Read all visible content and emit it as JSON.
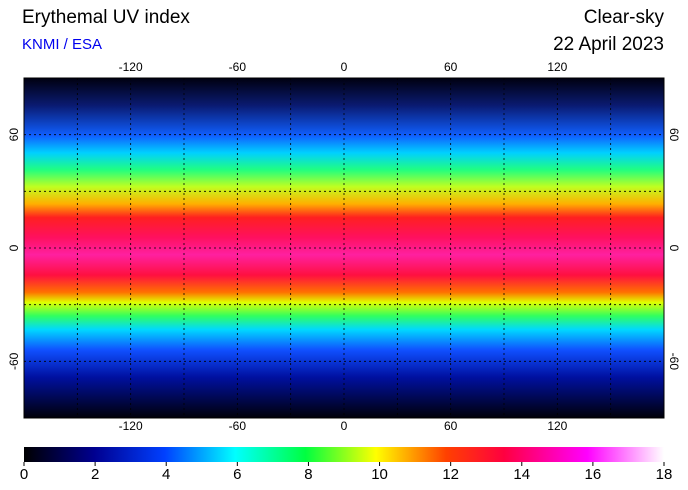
{
  "header": {
    "title": "Erythemal UV index",
    "source": "KNMI / ESA",
    "condition": "Clear-sky",
    "date": "22 April 2023"
  },
  "map": {
    "lonlim": [
      -180,
      180
    ],
    "latlim": [
      -90,
      90
    ],
    "lon_ticks": [
      -120,
      -60,
      0,
      60,
      120
    ],
    "lat_ticks": [
      60,
      0,
      -60
    ]
  },
  "colorbar": {
    "lim": [
      0,
      18
    ],
    "ticks": [
      0,
      2,
      4,
      6,
      8,
      10,
      12,
      14,
      16,
      18
    ]
  }
}
